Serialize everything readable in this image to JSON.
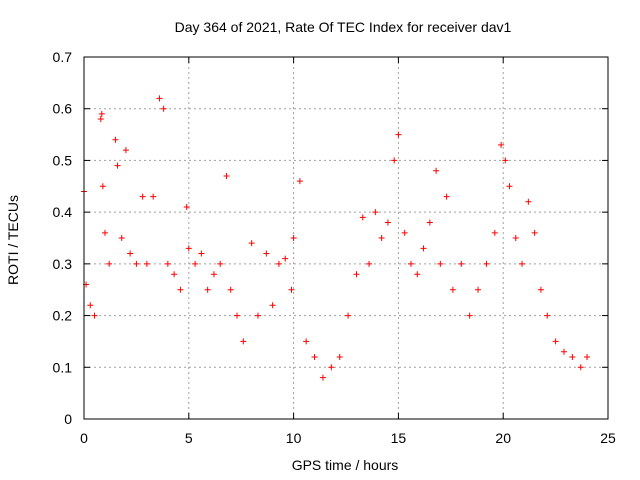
{
  "chart_data": {
    "type": "scatter",
    "title": "Day 364 of 2021, Rate Of TEC Index for receiver dav1",
    "xlabel": "GPS time / hours",
    "ylabel": "ROTI / TECUs",
    "xlim": [
      0,
      25
    ],
    "ylim": [
      0,
      0.7
    ],
    "x_ticks": [
      "0",
      "5",
      "10",
      "15",
      "20",
      "25"
    ],
    "y_ticks": [
      "0",
      "0.1",
      "0.2",
      "0.3",
      "0.4",
      "0.5",
      "0.6",
      "0.7"
    ],
    "grid": true,
    "marker": "+",
    "series": [
      {
        "color": "#ff0000",
        "x": [
          0.0,
          0.1,
          0.3,
          0.5,
          0.8,
          0.85,
          0.9,
          1.0,
          1.2,
          1.5,
          1.6,
          1.8,
          2.0,
          2.2,
          2.5,
          2.8,
          3.0,
          3.3,
          3.6,
          3.8,
          4.0,
          4.3,
          4.6,
          4.9,
          5.0,
          5.3,
          5.6,
          5.9,
          6.2,
          6.5,
          6.8,
          7.0,
          7.3,
          7.6,
          8.0,
          8.3,
          8.7,
          9.0,
          9.3,
          9.6,
          9.9,
          10.0,
          10.3,
          10.6,
          11.0,
          11.4,
          11.8,
          12.2,
          12.6,
          13.0,
          13.3,
          13.6,
          13.9,
          14.2,
          14.5,
          14.8,
          15.0,
          15.3,
          15.6,
          15.9,
          16.2,
          16.5,
          16.8,
          17.0,
          17.3,
          17.6,
          18.0,
          18.4,
          18.8,
          19.2,
          19.6,
          19.9,
          20.1,
          20.3,
          20.6,
          20.9,
          21.2,
          21.5,
          21.8,
          22.1,
          22.5,
          22.9,
          23.3,
          23.7,
          24.0
        ],
        "y": [
          0.44,
          0.26,
          0.22,
          0.2,
          0.58,
          0.59,
          0.45,
          0.36,
          0.3,
          0.54,
          0.49,
          0.35,
          0.52,
          0.32,
          0.3,
          0.43,
          0.3,
          0.43,
          0.62,
          0.6,
          0.3,
          0.28,
          0.25,
          0.41,
          0.33,
          0.3,
          0.32,
          0.25,
          0.28,
          0.3,
          0.47,
          0.25,
          0.2,
          0.15,
          0.34,
          0.2,
          0.32,
          0.22,
          0.3,
          0.31,
          0.25,
          0.35,
          0.46,
          0.15,
          0.12,
          0.08,
          0.1,
          0.12,
          0.2,
          0.28,
          0.39,
          0.3,
          0.4,
          0.35,
          0.38,
          0.5,
          0.55,
          0.36,
          0.3,
          0.28,
          0.33,
          0.38,
          0.48,
          0.3,
          0.43,
          0.25,
          0.3,
          0.2,
          0.25,
          0.3,
          0.36,
          0.53,
          0.5,
          0.45,
          0.35,
          0.3,
          0.42,
          0.36,
          0.25,
          0.2,
          0.15,
          0.13,
          0.12,
          0.1,
          0.12
        ]
      }
    ]
  }
}
